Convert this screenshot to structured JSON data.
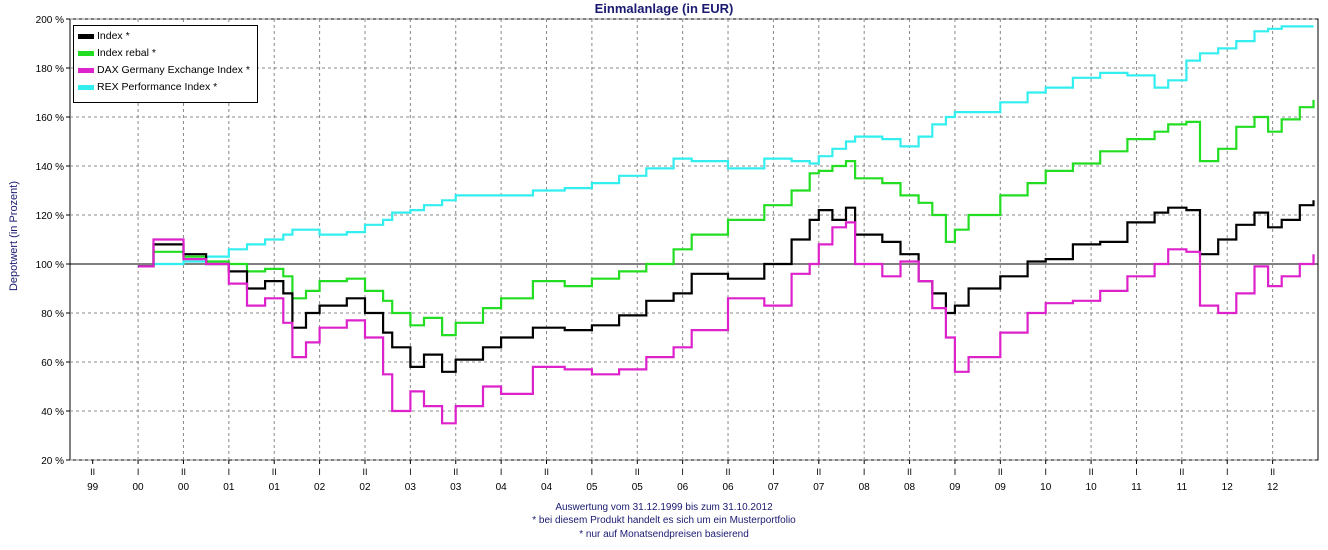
{
  "chart_data": {
    "type": "line",
    "title": "Einmalanlage (in EUR)",
    "ylabel": "Depotwert (in Prozent)",
    "xlabel": "",
    "ylim": [
      20,
      200
    ],
    "yticks": [
      "20 %",
      "40 %",
      "60 %",
      "80 %",
      "100 %",
      "120 %",
      "140 %",
      "160 %",
      "180 %",
      "200 %"
    ],
    "quarter_ticks": [
      "II",
      "I",
      "II",
      "I",
      "II",
      "I",
      "II",
      "I",
      "II",
      "I",
      "II",
      "I",
      "II",
      "I",
      "II",
      "I",
      "II",
      "I",
      "II",
      "I",
      "II",
      "I",
      "II",
      "I",
      "II",
      "I",
      "II"
    ],
    "year_ticks": [
      "99",
      "00",
      "00",
      "01",
      "01",
      "02",
      "02",
      "03",
      "03",
      "04",
      "04",
      "05",
      "05",
      "06",
      "06",
      "07",
      "07",
      "08",
      "08",
      "09",
      "09",
      "10",
      "10",
      "11",
      "11",
      "12",
      "12"
    ],
    "reference_line": 100,
    "grid": true,
    "legend": "top-left",
    "series": [
      {
        "name": "Index *",
        "color": "#000000",
        "values": [
          [
            2000.0,
            99
          ],
          [
            2000.17,
            108
          ],
          [
            2000.5,
            104
          ],
          [
            2000.75,
            100
          ],
          [
            2001.0,
            97
          ],
          [
            2001.2,
            90
          ],
          [
            2001.4,
            93
          ],
          [
            2001.6,
            88
          ],
          [
            2001.7,
            74
          ],
          [
            2001.85,
            80
          ],
          [
            2002.0,
            83
          ],
          [
            2002.3,
            86
          ],
          [
            2002.5,
            80
          ],
          [
            2002.7,
            72
          ],
          [
            2002.8,
            66
          ],
          [
            2003.0,
            58
          ],
          [
            2003.15,
            63
          ],
          [
            2003.35,
            56
          ],
          [
            2003.5,
            61
          ],
          [
            2003.8,
            66
          ],
          [
            2004.0,
            70
          ],
          [
            2004.35,
            74
          ],
          [
            2004.7,
            73
          ],
          [
            2005.0,
            75
          ],
          [
            2005.3,
            79
          ],
          [
            2005.6,
            85
          ],
          [
            2005.9,
            88
          ],
          [
            2006.1,
            96
          ],
          [
            2006.5,
            94
          ],
          [
            2006.9,
            100
          ],
          [
            2007.2,
            110
          ],
          [
            2007.4,
            118
          ],
          [
            2007.5,
            122
          ],
          [
            2007.65,
            118
          ],
          [
            2007.8,
            123
          ],
          [
            2007.9,
            112
          ],
          [
            2008.2,
            109
          ],
          [
            2008.4,
            104
          ],
          [
            2008.6,
            93
          ],
          [
            2008.75,
            88
          ],
          [
            2008.9,
            80
          ],
          [
            2009.0,
            83
          ],
          [
            2009.15,
            90
          ],
          [
            2009.5,
            95
          ],
          [
            2009.8,
            101
          ],
          [
            2010.0,
            102
          ],
          [
            2010.3,
            108
          ],
          [
            2010.6,
            109
          ],
          [
            2010.9,
            117
          ],
          [
            2011.2,
            121
          ],
          [
            2011.35,
            123
          ],
          [
            2011.55,
            122
          ],
          [
            2011.7,
            104
          ],
          [
            2011.9,
            110
          ],
          [
            2012.1,
            116
          ],
          [
            2012.3,
            121
          ],
          [
            2012.45,
            115
          ],
          [
            2012.6,
            118
          ],
          [
            2012.8,
            124
          ],
          [
            2012.95,
            126
          ]
        ]
      },
      {
        "name": "Index rebal *",
        "color": "#22dd22",
        "values": [
          [
            2000.0,
            99
          ],
          [
            2000.17,
            105
          ],
          [
            2000.5,
            103
          ],
          [
            2000.75,
            101
          ],
          [
            2001.0,
            100
          ],
          [
            2001.2,
            97
          ],
          [
            2001.4,
            98
          ],
          [
            2001.6,
            95
          ],
          [
            2001.7,
            86
          ],
          [
            2001.85,
            89
          ],
          [
            2002.0,
            93
          ],
          [
            2002.3,
            94
          ],
          [
            2002.5,
            89
          ],
          [
            2002.7,
            85
          ],
          [
            2002.8,
            80
          ],
          [
            2003.0,
            75
          ],
          [
            2003.15,
            78
          ],
          [
            2003.35,
            71
          ],
          [
            2003.5,
            76
          ],
          [
            2003.8,
            82
          ],
          [
            2004.0,
            86
          ],
          [
            2004.35,
            93
          ],
          [
            2004.7,
            91
          ],
          [
            2005.0,
            94
          ],
          [
            2005.3,
            97
          ],
          [
            2005.6,
            100
          ],
          [
            2005.9,
            106
          ],
          [
            2006.1,
            112
          ],
          [
            2006.5,
            118
          ],
          [
            2006.9,
            124
          ],
          [
            2007.2,
            130
          ],
          [
            2007.4,
            137
          ],
          [
            2007.5,
            138
          ],
          [
            2007.65,
            140
          ],
          [
            2007.8,
            142
          ],
          [
            2007.9,
            135
          ],
          [
            2008.2,
            133
          ],
          [
            2008.4,
            128
          ],
          [
            2008.6,
            125
          ],
          [
            2008.75,
            120
          ],
          [
            2008.9,
            109
          ],
          [
            2009.0,
            114
          ],
          [
            2009.15,
            120
          ],
          [
            2009.5,
            128
          ],
          [
            2009.8,
            133
          ],
          [
            2010.0,
            138
          ],
          [
            2010.3,
            141
          ],
          [
            2010.6,
            146
          ],
          [
            2010.9,
            151
          ],
          [
            2011.2,
            154
          ],
          [
            2011.35,
            157
          ],
          [
            2011.55,
            158
          ],
          [
            2011.7,
            142
          ],
          [
            2011.9,
            147
          ],
          [
            2012.1,
            156
          ],
          [
            2012.3,
            160
          ],
          [
            2012.45,
            154
          ],
          [
            2012.6,
            159
          ],
          [
            2012.8,
            164
          ],
          [
            2012.95,
            167
          ]
        ]
      },
      {
        "name": "DAX Germany Exchange Index *",
        "color": "#dd22cc",
        "values": [
          [
            2000.0,
            99
          ],
          [
            2000.17,
            110
          ],
          [
            2000.5,
            102
          ],
          [
            2000.75,
            100
          ],
          [
            2001.0,
            92
          ],
          [
            2001.2,
            83
          ],
          [
            2001.4,
            86
          ],
          [
            2001.6,
            76
          ],
          [
            2001.7,
            62
          ],
          [
            2001.85,
            68
          ],
          [
            2002.0,
            74
          ],
          [
            2002.3,
            77
          ],
          [
            2002.5,
            70
          ],
          [
            2002.7,
            55
          ],
          [
            2002.8,
            40
          ],
          [
            2003.0,
            48
          ],
          [
            2003.15,
            42
          ],
          [
            2003.35,
            35
          ],
          [
            2003.5,
            42
          ],
          [
            2003.8,
            50
          ],
          [
            2004.0,
            47
          ],
          [
            2004.35,
            58
          ],
          [
            2004.7,
            57
          ],
          [
            2005.0,
            55
          ],
          [
            2005.3,
            57
          ],
          [
            2005.6,
            62
          ],
          [
            2005.9,
            66
          ],
          [
            2006.1,
            73
          ],
          [
            2006.5,
            86
          ],
          [
            2006.9,
            83
          ],
          [
            2007.2,
            96
          ],
          [
            2007.4,
            100
          ],
          [
            2007.5,
            108
          ],
          [
            2007.65,
            115
          ],
          [
            2007.8,
            117
          ],
          [
            2007.9,
            100
          ],
          [
            2008.2,
            95
          ],
          [
            2008.4,
            101
          ],
          [
            2008.6,
            93
          ],
          [
            2008.75,
            82
          ],
          [
            2008.9,
            70
          ],
          [
            2009.0,
            56
          ],
          [
            2009.15,
            62
          ],
          [
            2009.5,
            72
          ],
          [
            2009.8,
            80
          ],
          [
            2010.0,
            84
          ],
          [
            2010.3,
            85
          ],
          [
            2010.6,
            89
          ],
          [
            2010.9,
            95
          ],
          [
            2011.2,
            100
          ],
          [
            2011.35,
            106
          ],
          [
            2011.55,
            105
          ],
          [
            2011.7,
            83
          ],
          [
            2011.9,
            80
          ],
          [
            2012.1,
            88
          ],
          [
            2012.3,
            99
          ],
          [
            2012.45,
            91
          ],
          [
            2012.6,
            95
          ],
          [
            2012.8,
            100
          ],
          [
            2012.95,
            104
          ]
        ]
      },
      {
        "name": "REX Performance Index *",
        "color": "#33eeee",
        "values": [
          [
            2000.0,
            99
          ],
          [
            2000.17,
            100
          ],
          [
            2000.5,
            101
          ],
          [
            2000.75,
            103
          ],
          [
            2001.0,
            106
          ],
          [
            2001.2,
            108
          ],
          [
            2001.4,
            110
          ],
          [
            2001.6,
            112
          ],
          [
            2001.7,
            114
          ],
          [
            2001.85,
            114
          ],
          [
            2002.0,
            112
          ],
          [
            2002.3,
            113
          ],
          [
            2002.5,
            116
          ],
          [
            2002.7,
            118
          ],
          [
            2002.8,
            121
          ],
          [
            2003.0,
            122
          ],
          [
            2003.15,
            124
          ],
          [
            2003.35,
            126
          ],
          [
            2003.5,
            128
          ],
          [
            2003.8,
            128
          ],
          [
            2004.0,
            128
          ],
          [
            2004.35,
            130
          ],
          [
            2004.7,
            131
          ],
          [
            2005.0,
            133
          ],
          [
            2005.3,
            136
          ],
          [
            2005.6,
            139
          ],
          [
            2005.9,
            143
          ],
          [
            2006.1,
            142
          ],
          [
            2006.5,
            139
          ],
          [
            2006.9,
            143
          ],
          [
            2007.2,
            142
          ],
          [
            2007.4,
            141
          ],
          [
            2007.5,
            144
          ],
          [
            2007.65,
            147
          ],
          [
            2007.8,
            150
          ],
          [
            2007.9,
            152
          ],
          [
            2008.2,
            151
          ],
          [
            2008.4,
            148
          ],
          [
            2008.6,
            152
          ],
          [
            2008.75,
            157
          ],
          [
            2008.9,
            160
          ],
          [
            2009.0,
            162
          ],
          [
            2009.15,
            162
          ],
          [
            2009.5,
            166
          ],
          [
            2009.8,
            170
          ],
          [
            2010.0,
            172
          ],
          [
            2010.3,
            176
          ],
          [
            2010.6,
            178
          ],
          [
            2010.9,
            177
          ],
          [
            2011.2,
            172
          ],
          [
            2011.35,
            175
          ],
          [
            2011.55,
            183
          ],
          [
            2011.7,
            186
          ],
          [
            2011.9,
            188
          ],
          [
            2012.1,
            191
          ],
          [
            2012.3,
            195
          ],
          [
            2012.45,
            196
          ],
          [
            2012.6,
            197
          ],
          [
            2012.8,
            197
          ],
          [
            2012.95,
            197
          ]
        ]
      }
    ]
  },
  "footer": {
    "line1": "Auswertung vom 31.12.1999 bis zum 31.10.2012",
    "line2": "* bei diesem Produkt handelt es sich um ein Musterportfolio",
    "line3": "* nur auf Monatsendpreisen basierend"
  }
}
